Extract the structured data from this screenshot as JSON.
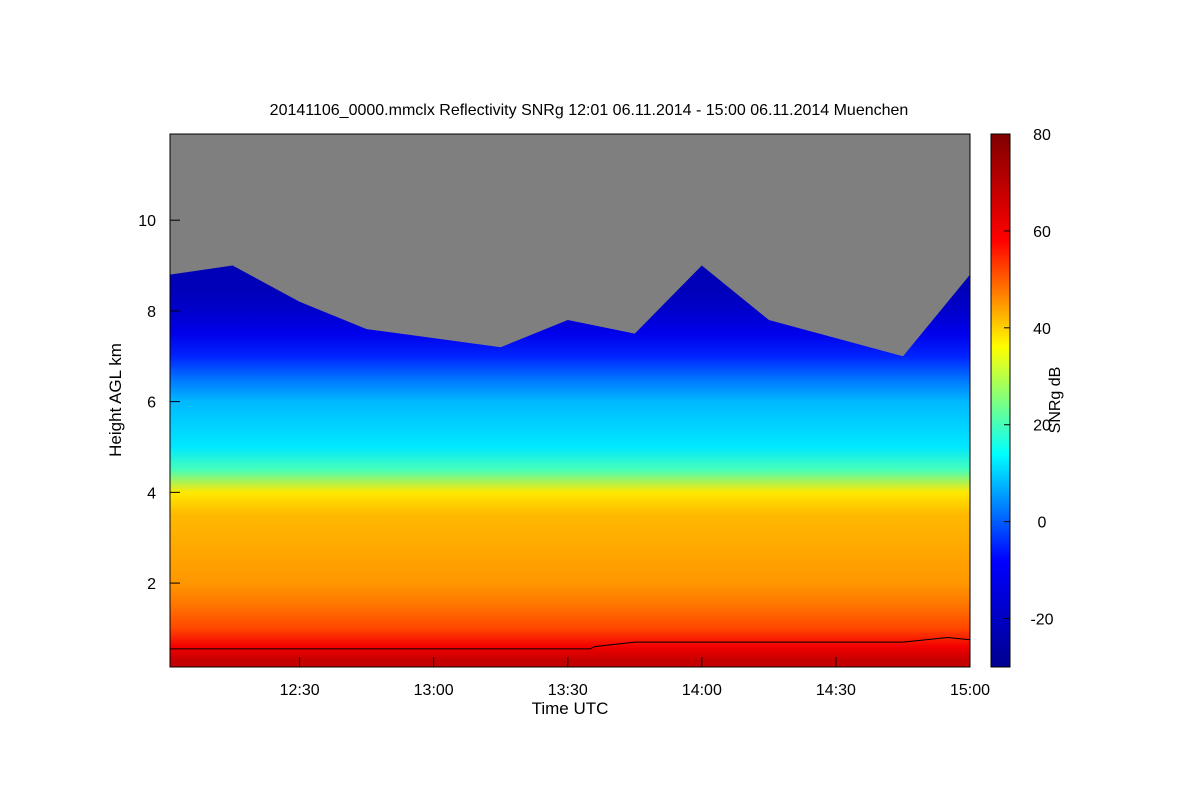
{
  "chart_data": {
    "type": "heatmap",
    "title": "20141106_0000.mmclx Reflectivity SNRg   12:01 06.11.2014 - 15:00 06.11.2014 Muenchen",
    "xlabel": "Time UTC",
    "ylabel": "Height AGL km",
    "colorbar_label": "SNRg dB",
    "x_range": [
      "12:01",
      "15:00"
    ],
    "x_ticks": [
      "12:30",
      "13:00",
      "13:30",
      "14:00",
      "14:30",
      "15:00"
    ],
    "y_range": [
      0.15,
      11.9
    ],
    "y_ticks": [
      2,
      4,
      6,
      8,
      10
    ],
    "colorbar_range": [
      -30,
      80
    ],
    "colorbar_ticks": [
      -20,
      0,
      20,
      40,
      60,
      80
    ],
    "colormap": [
      "#00008f",
      "#0000ff",
      "#00ffff",
      "#ffff00",
      "#ff0000",
      "#800000"
    ],
    "no_signal_color": "#7f7f7f",
    "profile": [
      {
        "height_km": 0.3,
        "snr_db": 68
      },
      {
        "height_km": 0.6,
        "snr_db": 60
      },
      {
        "height_km": 1.0,
        "snr_db": 52
      },
      {
        "height_km": 1.5,
        "snr_db": 48
      },
      {
        "height_km": 2.0,
        "snr_db": 45
      },
      {
        "height_km": 2.5,
        "snr_db": 44
      },
      {
        "height_km": 3.0,
        "snr_db": 43
      },
      {
        "height_km": 3.5,
        "snr_db": 42
      },
      {
        "height_km": 4.0,
        "snr_db": 38
      },
      {
        "height_km": 4.5,
        "snr_db": 20
      },
      {
        "height_km": 5.0,
        "snr_db": 12
      },
      {
        "height_km": 5.5,
        "snr_db": 10
      },
      {
        "height_km": 6.0,
        "snr_db": 8
      },
      {
        "height_km": 6.5,
        "snr_db": 2
      },
      {
        "height_km": 7.0,
        "snr_db": -5
      },
      {
        "height_km": 7.5,
        "snr_db": -12
      },
      {
        "height_km": 8.0,
        "snr_db": -18
      },
      {
        "height_km": 8.5,
        "snr_db": -22
      }
    ],
    "cloud_top_km": [
      {
        "time": "12:01",
        "top": 8.8
      },
      {
        "time": "12:15",
        "top": 9.0
      },
      {
        "time": "12:30",
        "top": 8.2
      },
      {
        "time": "12:45",
        "top": 7.6
      },
      {
        "time": "13:00",
        "top": 7.4
      },
      {
        "time": "13:15",
        "top": 7.2
      },
      {
        "time": "13:30",
        "top": 7.8
      },
      {
        "time": "13:45",
        "top": 7.5
      },
      {
        "time": "14:00",
        "top": 9.0
      },
      {
        "time": "14:15",
        "top": 7.8
      },
      {
        "time": "14:30",
        "top": 7.4
      },
      {
        "time": "14:45",
        "top": 7.0
      },
      {
        "time": "15:00",
        "top": 8.8
      }
    ],
    "melting_layer_line_km": [
      {
        "time": "12:01",
        "h": 0.55
      },
      {
        "time": "13:35",
        "h": 0.55
      },
      {
        "time": "13:36",
        "h": 0.6
      },
      {
        "time": "13:45",
        "h": 0.7
      },
      {
        "time": "14:30",
        "h": 0.7
      },
      {
        "time": "14:45",
        "h": 0.7
      },
      {
        "time": "14:55",
        "h": 0.8
      },
      {
        "time": "15:00",
        "h": 0.75
      }
    ]
  }
}
